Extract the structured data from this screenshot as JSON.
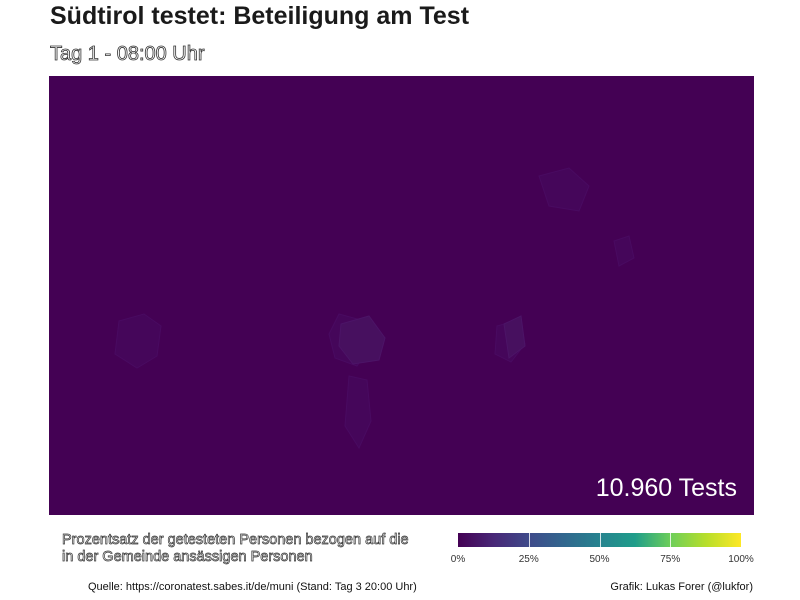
{
  "header": {
    "title": "Südtirol testet: Beteiligung am Test",
    "subtitle": "Tag 1 - 08:00 Uhr"
  },
  "map": {
    "test_count_label": "10.960  Tests",
    "fill_color": "#440154",
    "region_fill_color": "#45065a"
  },
  "legend": {
    "label": "Prozentsatz der getesteten Personen bezogen auf die in der Gemeinde ansässigen Personen",
    "ticks": [
      "0%",
      "25%",
      "50%",
      "75%",
      "100%"
    ],
    "scale": "viridis",
    "range": [
      0,
      100
    ]
  },
  "caption": {
    "source": "Quelle: https://coronatest.sabes.it/de/muni (Stand: Tag 3 20:00 Uhr)",
    "credit": "Grafik: Lukas Forer (@lukfor)"
  }
}
